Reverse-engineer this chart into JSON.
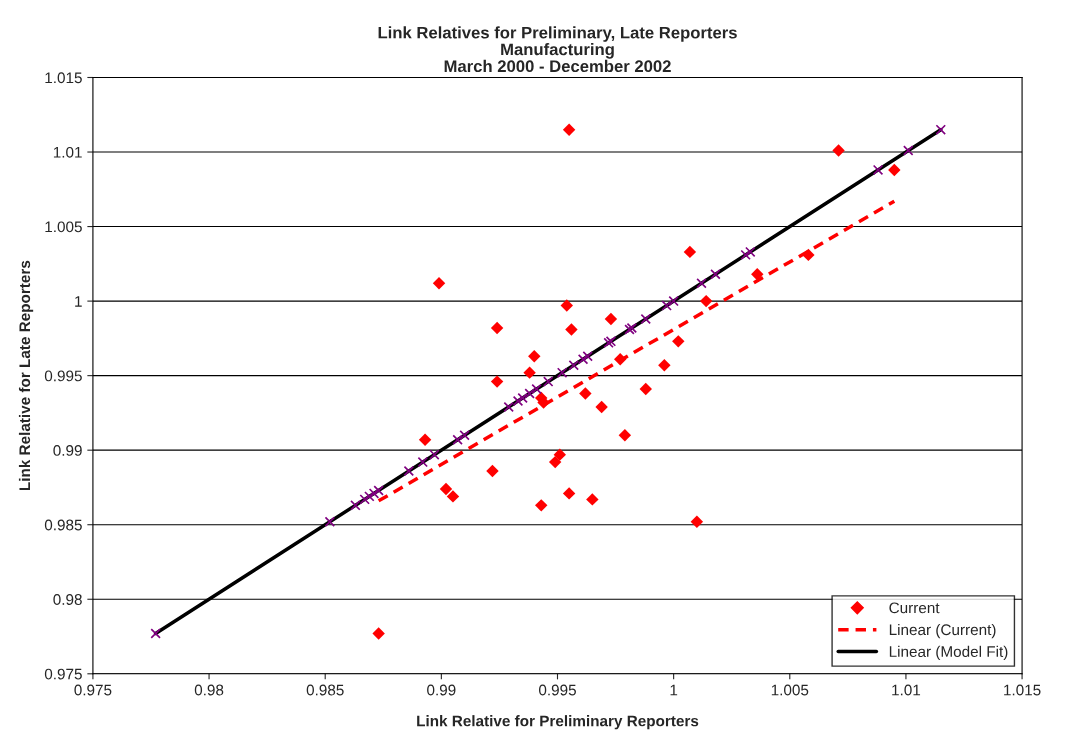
{
  "chart_data": {
    "type": "scatter",
    "title": "Link Relatives for Preliminary, Late Reporters\nManufacturing\nMarch 2000 - December 2002",
    "xlabel": "Link Relative for Preliminary Reporters",
    "ylabel": "Link Relative for Late Reporters",
    "xlim": [
      0.975,
      1.015
    ],
    "xticks": [
      0.975,
      0.98,
      0.985,
      0.99,
      0.995,
      1,
      1.005,
      1.01,
      1.015
    ],
    "ylim": [
      0.975,
      1.015
    ],
    "yticks": [
      0.975,
      0.98,
      0.985,
      0.99,
      0.995,
      1,
      1.005,
      1.01,
      1.015
    ],
    "grid": "y",
    "legend": "bottom right",
    "series": [
      {
        "name": "Current",
        "color": "#ff0000",
        "marker": "diamond",
        "x": [
          0.9955,
          1.0071,
          1.0095,
          1.0007,
          0.9899,
          0.9954,
          0.9956,
          0.9924,
          0.9973,
          1.0036,
          1.0058,
          1.0014,
          0.994,
          0.9938,
          0.9924,
          0.9977,
          1.0002,
          0.9943,
          0.9944,
          0.9962,
          0.9969,
          0.9988,
          0.9996,
          0.9979,
          0.9893,
          0.9951,
          0.9949,
          0.9922,
          0.9902,
          0.9905,
          0.9955,
          0.9965,
          0.9943,
          1.001,
          0.9873
        ],
        "values": [
          1.0115,
          1.0101,
          1.0088,
          1.0033,
          1.0012,
          0.9997,
          0.9981,
          0.9982,
          0.9988,
          1.0018,
          1.0031,
          1.0,
          0.9963,
          0.9952,
          0.9946,
          0.9961,
          0.9973,
          0.9935,
          0.9932,
          0.9938,
          0.9929,
          0.9941,
          0.9957,
          0.991,
          0.9907,
          0.9897,
          0.9892,
          0.9886,
          0.9874,
          0.9869,
          0.9871,
          0.9867,
          0.9863,
          0.9852,
          0.9777
        ]
      },
      {
        "name": "Linear (Current)",
        "type": "line",
        "color": "#ff0000",
        "line_style": "dashed",
        "x": [
          0.9873,
          1.0095
        ],
        "values": [
          0.9866,
          1.0067
        ]
      },
      {
        "name": "Linear (Model Fit)",
        "type": "line",
        "color": "#000000",
        "line_style": "solid",
        "x": [
          0.9777,
          1.0115
        ],
        "values": [
          0.9777,
          1.0115
        ]
      },
      {
        "type": "scatter",
        "color": "#800080",
        "marker": "cross",
        "x": [
          0.9777,
          0.9852,
          0.9863,
          0.9867,
          0.9869,
          0.9871,
          0.9873,
          0.9886,
          0.9892,
          0.9897,
          0.9907,
          0.991,
          0.9929,
          0.9933,
          0.9935,
          0.9938,
          0.9941,
          0.9946,
          0.9952,
          0.9957,
          0.9961,
          0.9963,
          0.9972,
          0.9973,
          0.9981,
          0.9982,
          0.9988,
          0.9997,
          1.0,
          1.0012,
          1.0018,
          1.0031,
          1.0033,
          1.0088,
          1.0101,
          1.0115
        ],
        "values": [
          0.9777,
          0.9852,
          0.9863,
          0.9867,
          0.9869,
          0.9871,
          0.9873,
          0.9886,
          0.9892,
          0.9897,
          0.9907,
          0.991,
          0.9929,
          0.9933,
          0.9935,
          0.9938,
          0.9941,
          0.9946,
          0.9952,
          0.9957,
          0.9961,
          0.9963,
          0.9972,
          0.9973,
          0.9981,
          0.9982,
          0.9988,
          0.9997,
          1.0,
          1.0012,
          1.0018,
          1.0031,
          1.0033,
          1.0088,
          1.0101,
          1.0115
        ]
      }
    ]
  }
}
